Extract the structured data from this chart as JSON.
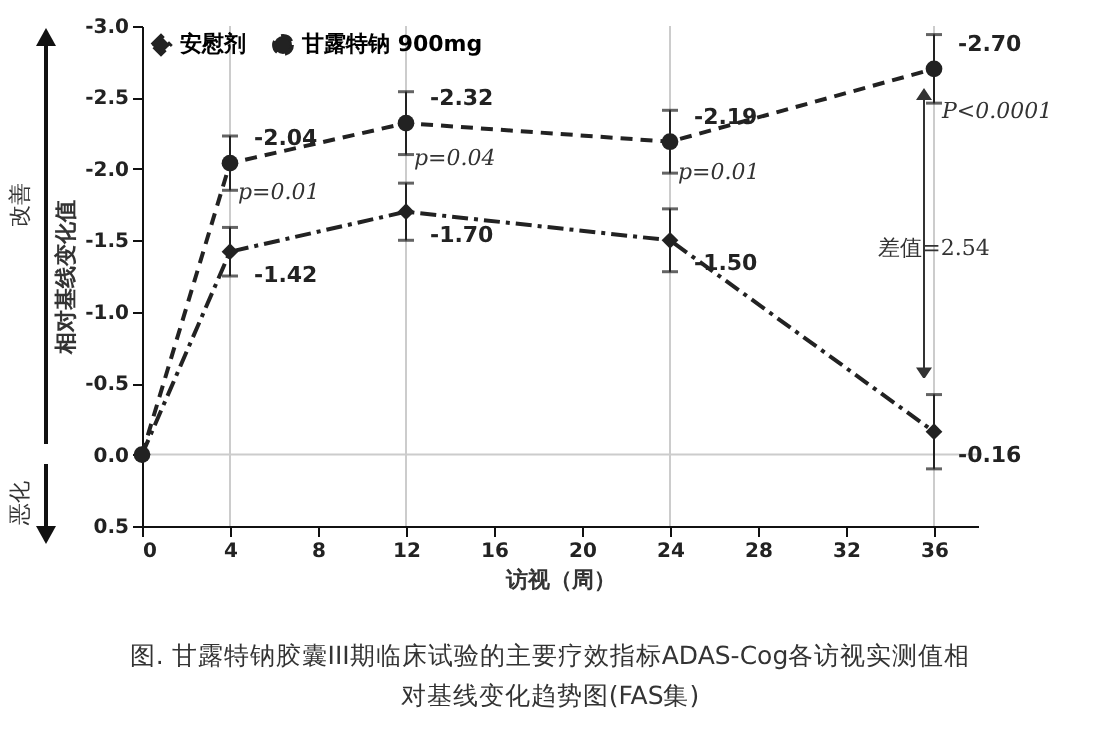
{
  "chart_data": {
    "type": "line",
    "xlabel": "访视（周）",
    "ylabel": "相对基线变化值",
    "x": [
      0,
      4,
      12,
      24,
      36
    ],
    "series": [
      {
        "name": "安慰剂",
        "color": "#222222",
        "marker": "diamond",
        "line_style": "dashdot",
        "values": [
          0,
          -1.42,
          -1.7,
          -1.5,
          -0.16
        ],
        "errors": [
          null,
          0.17,
          0.2,
          0.22,
          0.26
        ],
        "value_labels": [
          null,
          "-1.42",
          "-1.70",
          "-1.50",
          "-0.16"
        ]
      },
      {
        "name": "甘露特钠 900mg",
        "color": "#222222",
        "marker": "circle",
        "line_style": "dashed",
        "values": [
          0,
          -2.04,
          -2.32,
          -2.19,
          -2.7
        ],
        "errors": [
          null,
          0.19,
          0.22,
          0.22,
          0.24
        ],
        "value_labels": [
          null,
          "-2.04",
          "-2.32",
          "-2.19",
          "-2.70"
        ]
      }
    ],
    "xlim": [
      0,
      38
    ],
    "xticks": [
      0,
      4,
      8,
      12,
      16,
      20,
      24,
      28,
      32,
      36
    ],
    "ylim": [
      0.5,
      -3.0
    ],
    "yticks": [
      {
        "value": -3,
        "label": "-3.0"
      },
      -2.5,
      {
        "value": -2,
        "label": "-2.0"
      },
      -1.5,
      {
        "value": -1,
        "label": "-1.0"
      },
      -0.5,
      {
        "value": 0,
        "label": "0.0"
      },
      0.5
    ],
    "ref_lines": [
      {
        "axis": "x",
        "value": 4,
        "color": "#cccccc"
      },
      {
        "axis": "x",
        "value": 12,
        "color": "#cccccc"
      },
      {
        "axis": "x",
        "value": 24,
        "color": "#cccccc"
      },
      {
        "axis": "x",
        "value": 36,
        "color": "#cccccc"
      },
      {
        "axis": "y",
        "value": 0,
        "color": "#cccccc"
      }
    ],
    "legend": "top left",
    "grid": false,
    "annotations": [
      {
        "text": "p=0.01",
        "x": 4,
        "y": -1.83
      },
      {
        "text": "p=0.04",
        "x": 12,
        "y": -2.07
      },
      {
        "text": "p=0.01",
        "x": 24,
        "y": -1.97
      },
      {
        "text": "P<0.0001",
        "x": 36,
        "y": -2.4
      },
      "差值=2.54",
      "改善",
      "恶化",
      "图. 甘露特钠胶囊III期临床试验的主要疗效指标ADAS-Cog各访视实测值相对基线变化趋势图(FAS集)"
    ]
  }
}
